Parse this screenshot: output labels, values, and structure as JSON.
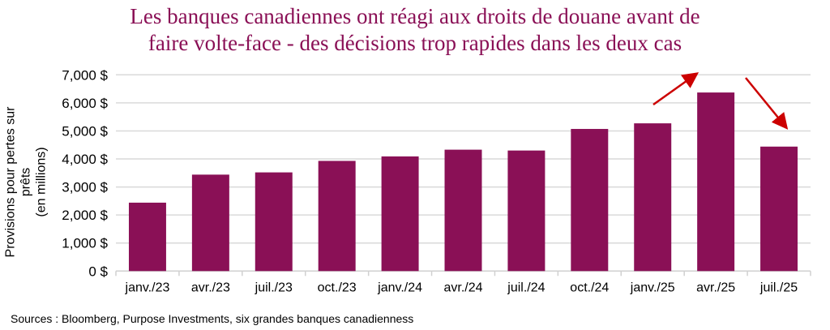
{
  "chart_data": {
    "type": "bar",
    "title": "Les banques canadiennes ont réagi aux droits de douane avant de faire volte-face - des décisions trop rapides dans les deux cas",
    "title_lines": [
      "Les banques canadiennes ont réagi aux droits de douane avant de",
      "faire volte-face - des décisions trop rapides dans les deux cas"
    ],
    "ylabel_lines": [
      "Provisions pour pertes sur prêts",
      "(en millions)"
    ],
    "xlabel": "",
    "categories": [
      "janv./23",
      "avr./23",
      "juil./23",
      "oct./23",
      "janv./24",
      "avr./24",
      "juil./24",
      "oct./24",
      "janv./25",
      "avr./25",
      "juil./25"
    ],
    "values": [
      2440,
      3440,
      3520,
      3930,
      4090,
      4330,
      4300,
      5070,
      5270,
      6370,
      4440
    ],
    "ylim": [
      0,
      7000
    ],
    "yticks": [
      0,
      1000,
      2000,
      3000,
      4000,
      5000,
      6000,
      7000
    ],
    "ytick_labels": [
      "0 $",
      "1,000 $",
      "2,000 $",
      "3,000 $",
      "4,000 $",
      "5,000 $",
      "6,000 $",
      "7,000 $"
    ],
    "grid": true,
    "legend": "none",
    "annotations": [
      "up-arrow before avr./25",
      "down-arrow after avr./25"
    ],
    "colors": {
      "bar": "#8a1056",
      "title": "#8a1056",
      "arrow": "#cc0000",
      "grid": "#d9d9d9"
    }
  },
  "source": "Sources : Bloomberg, Purpose Investments, six grandes banques canadienness"
}
